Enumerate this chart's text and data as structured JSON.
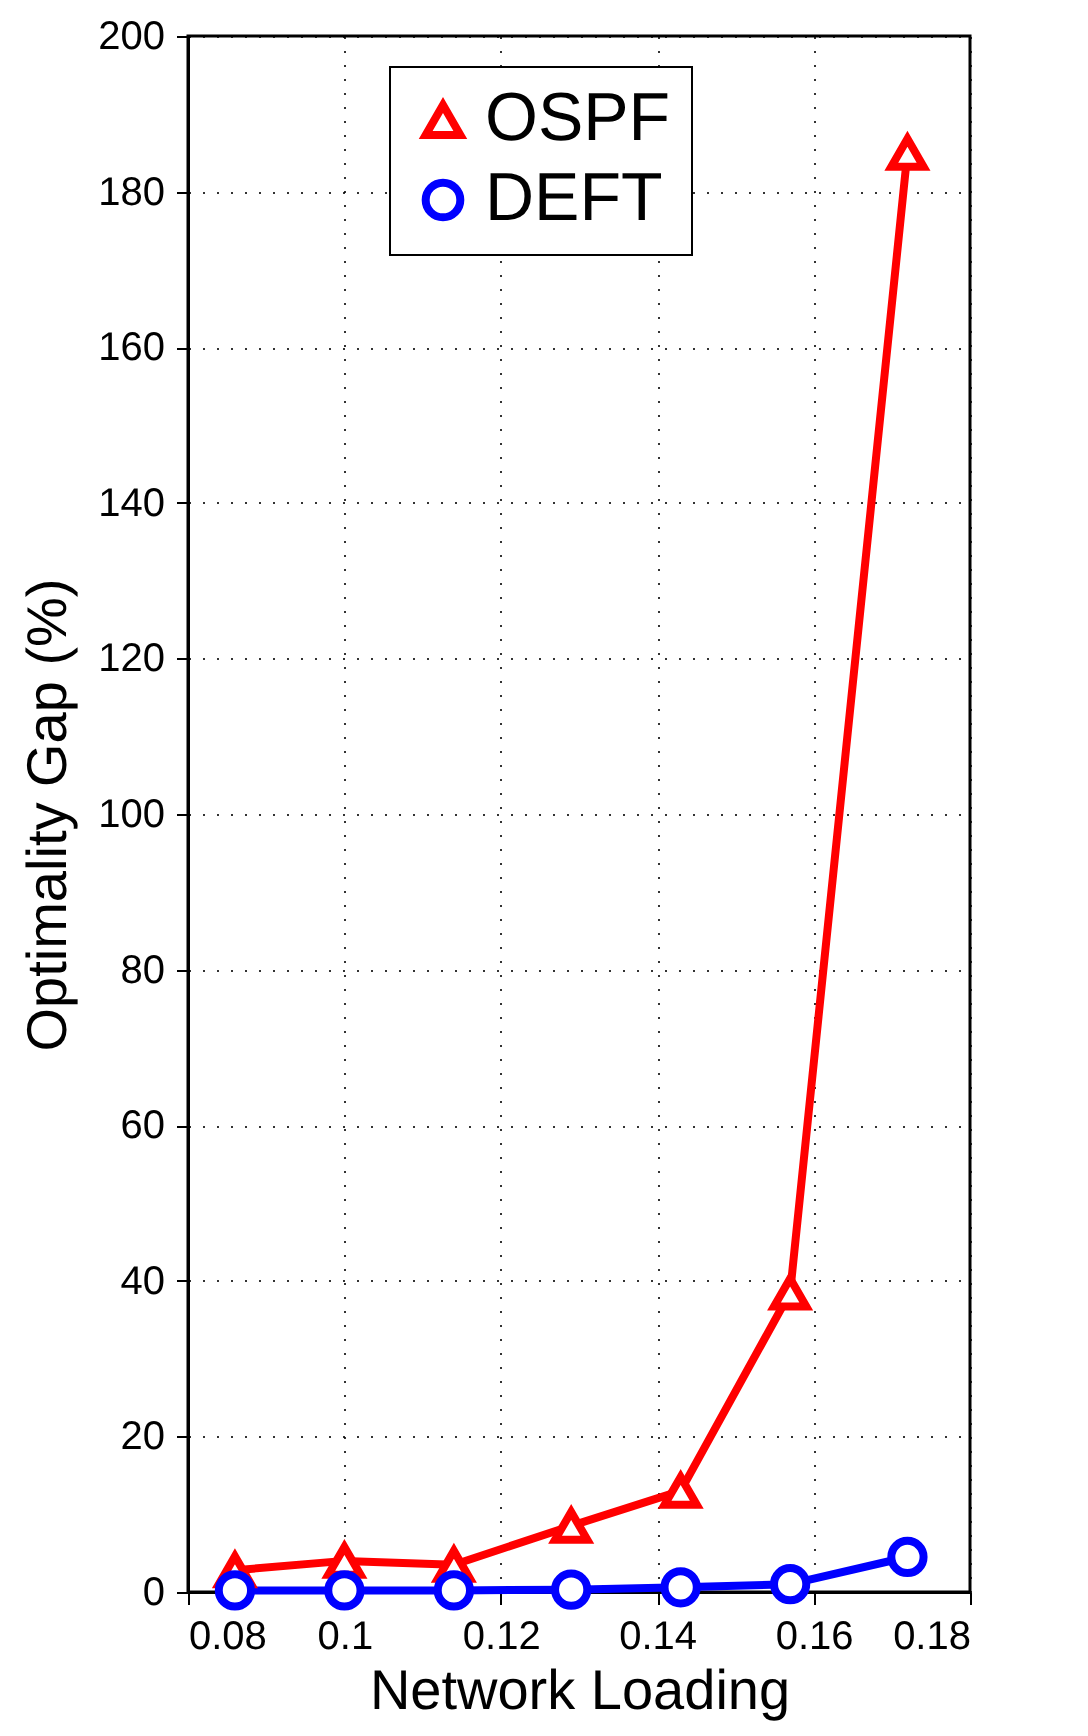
{
  "chart_data": {
    "type": "line",
    "xlabel": "Network Loading",
    "ylabel": "Optimality Gap (%)",
    "x": [
      0.086,
      0.1,
      0.114,
      0.129,
      0.143,
      0.157,
      0.172
    ],
    "series": [
      {
        "name": "OSPF",
        "color": "#ff0000",
        "marker": "triangle",
        "values": [
          2.8,
          4,
          3.5,
          8.5,
          13,
          38.5,
          185
        ]
      },
      {
        "name": "DEFT",
        "color": "#0000ff",
        "marker": "circle",
        "values": [
          0.2,
          0.2,
          0.2,
          0.3,
          0.6,
          1,
          4.5
        ]
      }
    ],
    "xlim": [
      0.08,
      0.18
    ],
    "xticks": [
      0.08,
      0.1,
      0.12,
      0.14,
      0.16,
      0.18
    ],
    "ylim": [
      0,
      200
    ],
    "yticks": [
      0,
      20,
      40,
      60,
      80,
      100,
      120,
      140,
      160,
      180,
      200
    ],
    "grid": true,
    "legend": "top",
    "line_style": "solid"
  }
}
